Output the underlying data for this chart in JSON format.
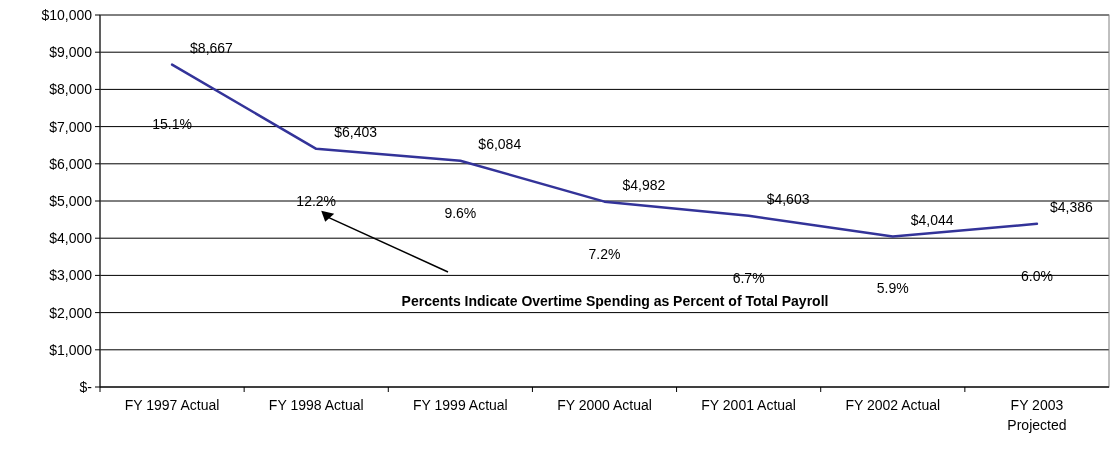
{
  "chart_data": {
    "type": "line",
    "categories": [
      "FY 1997 Actual",
      "FY 1998 Actual",
      "FY 1999 Actual",
      "FY 2000 Actual",
      "FY 2001 Actual",
      "FY 2002 Actual",
      "FY 2003\nProjected"
    ],
    "series": [
      {
        "color": "#333399",
        "values": [
          8667,
          6403,
          6084,
          4982,
          4603,
          4044,
          4386
        ],
        "value_labels": [
          "$8,667",
          "$6,403",
          "$6,084",
          "$4,982",
          "$4,603",
          "$4,044",
          "$4,386"
        ]
      }
    ],
    "ylim": [
      0,
      10000
    ],
    "yticks": [
      {
        "value": 0,
        "label": "$-"
      },
      {
        "value": 1000,
        "label": "$1,000"
      },
      {
        "value": 2000,
        "label": "$2,000"
      },
      {
        "value": 3000,
        "label": "$3,000"
      },
      {
        "value": 4000,
        "label": "$4,000"
      },
      {
        "value": 5000,
        "label": "$5,000"
      },
      {
        "value": 6000,
        "label": "$6,000"
      },
      {
        "value": 7000,
        "label": "$7,000"
      },
      {
        "value": 8000,
        "label": "$8,000"
      },
      {
        "value": 9000,
        "label": "$9,000"
      },
      {
        "value": 10000,
        "label": "$10,000"
      }
    ],
    "grid": "y",
    "marker": "none",
    "line_style": "solid",
    "annotations": [
      "15.1%",
      "12.2%",
      "9.6%",
      "7.2%",
      "6.7%",
      "5.9%",
      "6.0%",
      "Percents Indicate Overtime Spending as Percent of Total Payroll"
    ]
  }
}
